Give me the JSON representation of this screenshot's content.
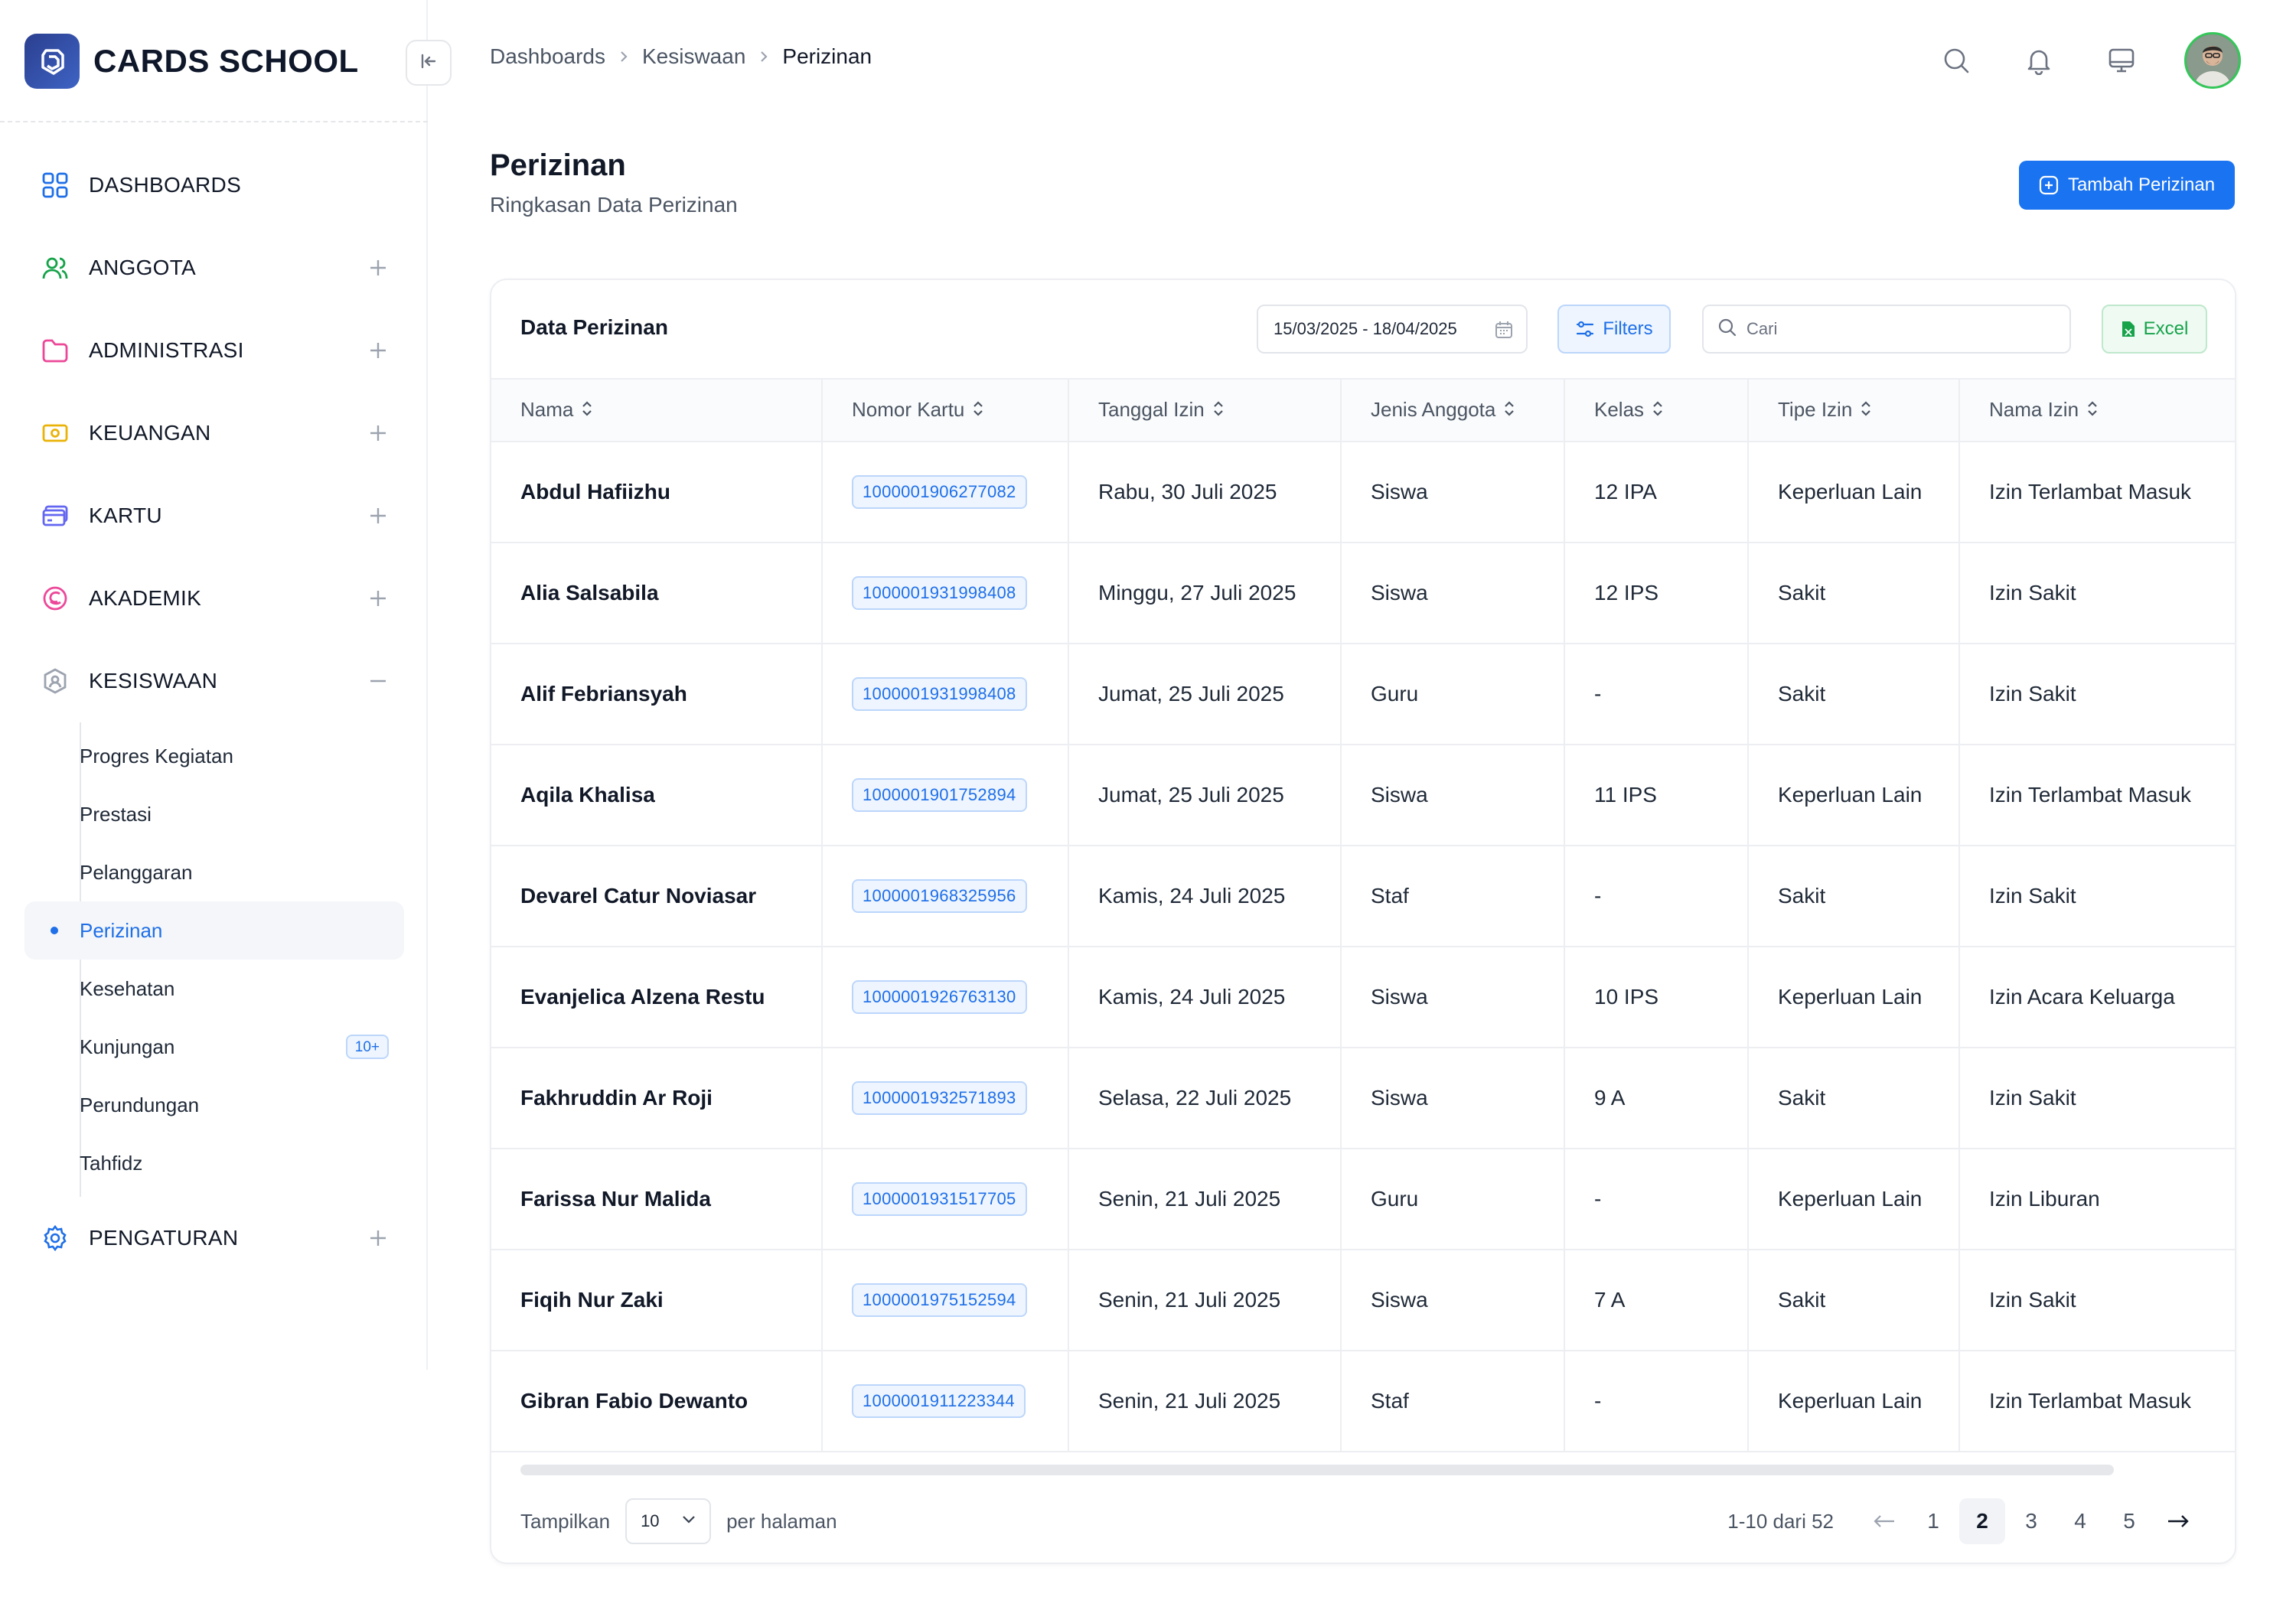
{
  "brand": {
    "name": "CARDS SCHOOL"
  },
  "breadcrumb": {
    "items": [
      "Dashboards",
      "Kesiswaan",
      "Perizinan"
    ]
  },
  "nav": {
    "items": [
      {
        "label": "DASHBOARDS",
        "icon": "grid-icon",
        "color": "#1e6fe8"
      },
      {
        "label": "ANGGOTA",
        "icon": "users-icon",
        "color": "#16a34a"
      },
      {
        "label": "ADMINISTRASI",
        "icon": "folder-icon",
        "color": "#ec4899"
      },
      {
        "label": "KEUANGAN",
        "icon": "money-icon",
        "color": "#eab308"
      },
      {
        "label": "KARTU",
        "icon": "card-icon",
        "color": "#6366f1"
      },
      {
        "label": "AKADEMIK",
        "icon": "academic-icon",
        "color": "#ec4899"
      },
      {
        "label": "KESISWAAN",
        "icon": "student-icon",
        "color": "#9ca3af"
      },
      {
        "label": "PENGATURAN",
        "icon": "settings-icon",
        "color": "#1e6fe8"
      }
    ],
    "kesiswaan_sub": [
      {
        "label": "Progres Kegiatan"
      },
      {
        "label": "Prestasi"
      },
      {
        "label": "Pelanggaran"
      },
      {
        "label": "Perizinan"
      },
      {
        "label": "Kesehatan"
      },
      {
        "label": "Kunjungan",
        "badge": "10+"
      },
      {
        "label": "Perundungan"
      },
      {
        "label": "Tahfidz"
      }
    ]
  },
  "page": {
    "title": "Perizinan",
    "subtitle": "Ringkasan Data Perizinan",
    "add_button": "Tambah Perizinan"
  },
  "card": {
    "title": "Data Perizinan",
    "date_range": "15/03/2025 - 18/04/2025",
    "filters_label": "Filters",
    "search_placeholder": "Cari",
    "excel_label": "Excel"
  },
  "table": {
    "columns": [
      "Nama",
      "Nomor Kartu",
      "Tanggal Izin",
      "Jenis Anggota",
      "Kelas",
      "Tipe Izin",
      "Nama Izin"
    ],
    "rows": [
      [
        "Abdul Hafiizhu",
        "1000001906277082",
        "Rabu, 30 Juli 2025",
        "Siswa",
        "12 IPA",
        "Keperluan Lain",
        "Izin Terlambat Masuk"
      ],
      [
        "Alia Salsabila",
        "1000001931998408",
        "Minggu, 27 Juli 2025",
        "Siswa",
        "12 IPS",
        "Sakit",
        "Izin Sakit"
      ],
      [
        "Alif Febriansyah",
        "1000001931998408",
        "Jumat, 25 Juli 2025",
        "Guru",
        "-",
        "Sakit",
        "Izin Sakit"
      ],
      [
        "Aqila Khalisa",
        "1000001901752894",
        "Jumat, 25 Juli 2025",
        "Siswa",
        "11 IPS",
        "Keperluan Lain",
        "Izin Terlambat Masuk"
      ],
      [
        "Devarel Catur Noviasar",
        "1000001968325956",
        "Kamis, 24 Juli 2025",
        "Staf",
        "-",
        "Sakit",
        "Izin Sakit"
      ],
      [
        "Evanjelica Alzena Restu",
        "1000001926763130",
        "Kamis, 24 Juli 2025",
        "Siswa",
        "10 IPS",
        "Keperluan Lain",
        "Izin Acara Keluarga"
      ],
      [
        "Fakhruddin Ar Roji",
        "1000001932571893",
        "Selasa, 22 Juli 2025",
        "Siswa",
        "9 A",
        "Sakit",
        "Izin Sakit"
      ],
      [
        "Farissa Nur Malida",
        "1000001931517705",
        "Senin, 21 Juli 2025",
        "Guru",
        "-",
        "Keperluan Lain",
        "Izin Liburan"
      ],
      [
        "Fiqih Nur Zaki",
        "1000001975152594",
        "Senin, 21 Juli 2025",
        "Siswa",
        "7 A",
        "Sakit",
        "Izin Sakit"
      ],
      [
        "Gibran Fabio Dewanto",
        "1000001911223344",
        "Senin, 21 Juli 2025",
        "Staf",
        "-",
        "Keperluan Lain",
        "Izin Terlambat Masuk"
      ]
    ]
  },
  "footer": {
    "show_label": "Tampilkan",
    "page_size": "10",
    "per_page_label": "per halaman",
    "range_text": "1-10 dari 52",
    "pages": [
      "1",
      "2",
      "3",
      "4",
      "5"
    ],
    "current_page": "2"
  },
  "colors": {
    "accent": "#1a73f0",
    "excel": "#16a34a"
  }
}
